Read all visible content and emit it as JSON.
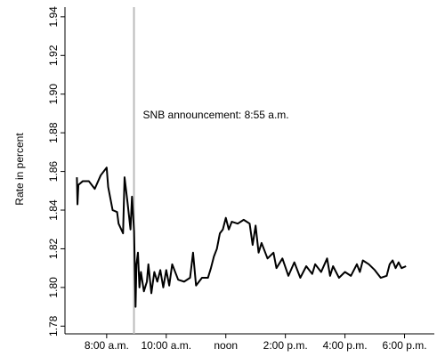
{
  "chart_data": {
    "type": "line",
    "y_label": "Rate in percent",
    "x": [
      7.0,
      7.02,
      7.05,
      7.2,
      7.4,
      7.6,
      7.8,
      8.0,
      8.05,
      8.2,
      8.35,
      8.4,
      8.55,
      8.6,
      8.7,
      8.8,
      8.85,
      8.92,
      8.97,
      9.0,
      9.05,
      9.1,
      9.15,
      9.25,
      9.35,
      9.4,
      9.5,
      9.6,
      9.7,
      9.8,
      9.9,
      10.0,
      10.1,
      10.2,
      10.4,
      10.6,
      10.8,
      10.9,
      11.0,
      11.2,
      11.4,
      11.5,
      11.6,
      11.7,
      11.8,
      11.9,
      12.0,
      12.1,
      12.2,
      12.4,
      12.6,
      12.8,
      12.9,
      13.0,
      13.1,
      13.2,
      13.4,
      13.6,
      13.7,
      13.9,
      14.1,
      14.3,
      14.5,
      14.7,
      14.9,
      15.0,
      15.2,
      15.4,
      15.5,
      15.6,
      15.8,
      16.0,
      16.2,
      16.4,
      16.5,
      16.6,
      16.8,
      17.0,
      17.2,
      17.4,
      17.5,
      17.6,
      17.7,
      17.8,
      17.9,
      18.05
    ],
    "values": [
      1.857,
      1.843,
      1.853,
      1.855,
      1.855,
      1.851,
      1.858,
      1.862,
      1.852,
      1.84,
      1.839,
      1.833,
      1.828,
      1.857,
      1.844,
      1.83,
      1.847,
      1.829,
      1.79,
      1.812,
      1.818,
      1.8,
      1.808,
      1.798,
      1.803,
      1.812,
      1.797,
      1.808,
      1.803,
      1.809,
      1.8,
      1.809,
      1.801,
      1.812,
      1.804,
      1.803,
      1.805,
      1.818,
      1.801,
      1.805,
      1.805,
      1.81,
      1.816,
      1.82,
      1.828,
      1.83,
      1.836,
      1.83,
      1.834,
      1.833,
      1.835,
      1.833,
      1.822,
      1.832,
      1.818,
      1.823,
      1.815,
      1.818,
      1.81,
      1.815,
      1.806,
      1.813,
      1.805,
      1.811,
      1.807,
      1.812,
      1.808,
      1.815,
      1.806,
      1.811,
      1.805,
      1.808,
      1.806,
      1.812,
      1.808,
      1.814,
      1.812,
      1.809,
      1.805,
      1.806,
      1.812,
      1.814,
      1.81,
      1.813,
      1.81,
      1.811
    ],
    "color": "#000000",
    "xlim": [
      6.6,
      19.0
    ],
    "xticks": [
      {
        "value": 8,
        "label": "8:00 a.m."
      },
      {
        "value": 10,
        "label": "10:00 a.m."
      },
      {
        "value": 12,
        "label": "noon"
      },
      {
        "value": 14,
        "label": "2:00 p.m."
      },
      {
        "value": 16,
        "label": "4:00 p.m."
      },
      {
        "value": 18,
        "label": "6:00 p.m."
      }
    ],
    "ylim": [
      1.776,
      1.945
    ],
    "yticks": [
      1.78,
      {
        "value": 1.8,
        "label": "1.80"
      },
      1.82,
      1.84,
      1.86,
      1.88,
      {
        "value": 1.9,
        "label": "1.90"
      },
      1.92,
      1.94
    ],
    "annotation": {
      "x": 8.9167,
      "label": "SNB announcement: 8:55 a.m.",
      "color": "#bbbbbb"
    },
    "grid": false
  }
}
